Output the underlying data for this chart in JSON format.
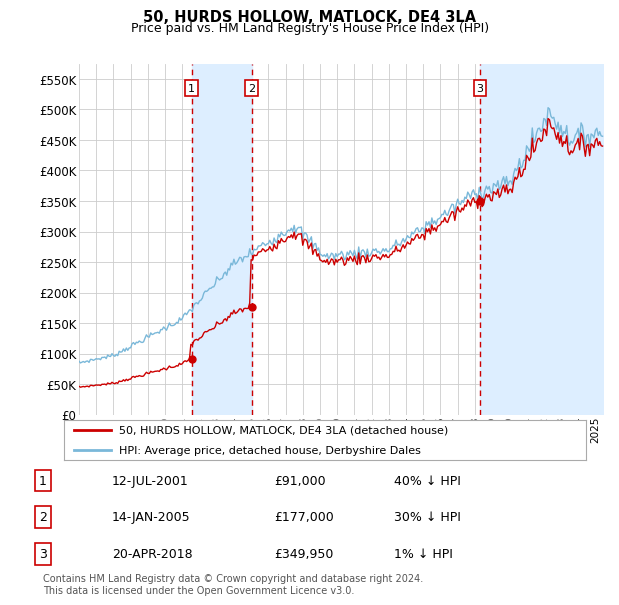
{
  "title": "50, HURDS HOLLOW, MATLOCK, DE4 3LA",
  "subtitle": "Price paid vs. HM Land Registry's House Price Index (HPI)",
  "hpi_color": "#7ab8d9",
  "price_color": "#cc0000",
  "vline_color": "#cc0000",
  "vspan_color": "#ddeeff",
  "background_color": "#ffffff",
  "grid_color": "#cccccc",
  "ylim": [
    0,
    575000
  ],
  "yticks": [
    0,
    50000,
    100000,
    150000,
    200000,
    250000,
    300000,
    350000,
    400000,
    450000,
    500000,
    550000
  ],
  "ytick_labels": [
    "£0",
    "£50K",
    "£100K",
    "£150K",
    "£200K",
    "£250K",
    "£300K",
    "£350K",
    "£400K",
    "£450K",
    "£500K",
    "£550K"
  ],
  "xmin": 1995.0,
  "xmax": 2025.5,
  "purchases": [
    {
      "label": "1",
      "date": 2001.54,
      "price": 91000
    },
    {
      "label": "2",
      "date": 2005.04,
      "price": 177000
    },
    {
      "label": "3",
      "date": 2018.3,
      "price": 349950
    }
  ],
  "legend_entries": [
    {
      "label": "50, HURDS HOLLOW, MATLOCK, DE4 3LA (detached house)",
      "color": "#cc0000"
    },
    {
      "label": "HPI: Average price, detached house, Derbyshire Dales",
      "color": "#7ab8d9"
    }
  ],
  "table": [
    {
      "num": "1",
      "date": "12-JUL-2001",
      "price": "£91,000",
      "hpi": "40% ↓ HPI"
    },
    {
      "num": "2",
      "date": "14-JAN-2005",
      "price": "£177,000",
      "hpi": "30% ↓ HPI"
    },
    {
      "num": "3",
      "date": "20-APR-2018",
      "price": "£349,950",
      "hpi": "1% ↓ HPI"
    }
  ],
  "footer": "Contains HM Land Registry data © Crown copyright and database right 2024.\nThis data is licensed under the Open Government Licence v3.0."
}
